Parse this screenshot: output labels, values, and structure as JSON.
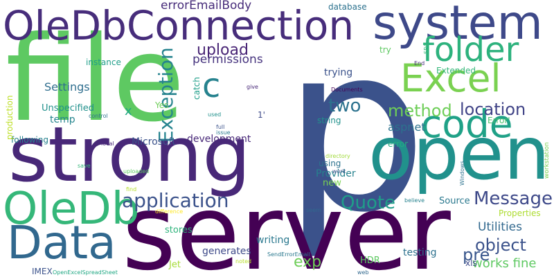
{
  "words": [
    {
      "text": "p",
      "weight": 100,
      "color": "#3b528b"
    },
    {
      "text": "file",
      "weight": 84,
      "color": "#5ec962"
    },
    {
      "text": "server",
      "weight": 82,
      "color": "#440154"
    },
    {
      "text": "strong",
      "weight": 72,
      "color": "#482878"
    },
    {
      "text": "open",
      "weight": 70,
      "color": "#21918c"
    },
    {
      "text": "system",
      "weight": 55,
      "color": "#3e4989"
    },
    {
      "text": "OleDbConnection",
      "weight": 52,
      "color": "#472d7b"
    },
    {
      "text": "Data",
      "weight": 48,
      "color": "#31688e"
    },
    {
      "text": "OleDb",
      "weight": 45,
      "color": "#35b779"
    },
    {
      "text": "code",
      "weight": 44,
      "color": "#1fa187"
    },
    {
      "text": "Excel",
      "weight": 42,
      "color": "#7ad151"
    },
    {
      "text": "folder",
      "weight": 40,
      "color": "#2db27d"
    },
    {
      "text": "c",
      "weight": 38,
      "color": "#26828e"
    },
    {
      "text": "application",
      "weight": 24,
      "color": "#3b528b"
    },
    {
      "text": "Message",
      "weight": 22,
      "color": "#3e4989"
    },
    {
      "text": "two",
      "weight": 22,
      "color": "#2c728e"
    },
    {
      "text": "Quote",
      "weight": 22,
      "color": "#1f9e89"
    },
    {
      "text": "Exception",
      "weight": 22,
      "color": "#25838e"
    },
    {
      "text": "method",
      "weight": 20,
      "color": "#6ece58"
    },
    {
      "text": "location",
      "weight": 20,
      "color": "#414487"
    },
    {
      "text": "object",
      "weight": 20,
      "color": "#3b528b"
    },
    {
      "text": "pre",
      "weight": 20,
      "color": "#39568c"
    },
    {
      "text": "upload",
      "weight": 18,
      "color": "#482475"
    },
    {
      "text": "exp",
      "weight": 18,
      "color": "#6ece58"
    },
    {
      "text": "permissions",
      "weight": 15,
      "color": "#46337e"
    },
    {
      "text": "errorEmailBody",
      "weight": 15,
      "color": "#472c7a"
    },
    {
      "text": "Utilities",
      "weight": 15,
      "color": "#31688e"
    },
    {
      "text": "works fine",
      "weight": 15,
      "color": "#5ec962"
    },
    {
      "text": "x",
      "weight": 15,
      "color": "#22a884"
    },
    {
      "text": "aspnet",
      "weight": 14,
      "color": "#2c728e"
    },
    {
      "text": "Settings",
      "weight": 13,
      "color": "#2e6e8e"
    },
    {
      "text": "Microsoft",
      "weight": 12,
      "color": "#3b528b"
    },
    {
      "text": "development",
      "weight": 12,
      "color": "#482878"
    },
    {
      "text": "generates",
      "weight": 12,
      "color": "#3e4a89"
    },
    {
      "text": "writing",
      "weight": 12,
      "color": "#2a788e"
    },
    {
      "text": "Provider",
      "weight": 12,
      "color": "#26828e"
    },
    {
      "text": "testing",
      "weight": 12,
      "color": "#2d718e"
    },
    {
      "text": "trying",
      "weight": 12,
      "color": "#3b528b"
    },
    {
      "text": "temp",
      "weight": 12,
      "color": "#25858e"
    },
    {
      "text": "Unspecified",
      "weight": 11,
      "color": "#21918c"
    },
    {
      "text": "stores",
      "weight": 11,
      "color": "#2fb47c"
    },
    {
      "text": "HDR",
      "weight": 11,
      "color": "#5ec962"
    },
    {
      "text": "Jet",
      "weight": 11,
      "color": "#a5db36"
    },
    {
      "text": "Source",
      "weight": 11,
      "color": "#2a788e"
    },
    {
      "text": "Properties",
      "weight": 10,
      "color": "#addc30"
    },
    {
      "text": "xls",
      "weight": 10,
      "color": "#3e4a89"
    },
    {
      "text": "new",
      "weight": 11,
      "color": "#7ad151"
    },
    {
      "text": "using",
      "weight": 10,
      "color": "#2c728e"
    },
    {
      "text": "error",
      "weight": 10,
      "color": "#25ab82"
    },
    {
      "text": "string",
      "weight": 10,
      "color": "#21918c"
    },
    {
      "text": "following",
      "weight": 10,
      "color": "#26828e"
    },
    {
      "text": "instance",
      "weight": 10,
      "color": "#1f9e89"
    },
    {
      "text": "Yes",
      "weight": 10,
      "color": "#6ece58"
    },
    {
      "text": "database",
      "weight": 10,
      "color": "#2c728e"
    },
    {
      "text": "try",
      "weight": 10,
      "color": "#5ec962"
    },
    {
      "text": "catch",
      "weight": 9,
      "color": "#1f9e89"
    },
    {
      "text": "production",
      "weight": 9,
      "color": "#bddf26"
    },
    {
      "text": "Extended",
      "weight": 9,
      "color": "#35b779"
    },
    {
      "text": "Error'",
      "weight": 9,
      "color": "#4ac16d"
    },
    {
      "text": "1'",
      "weight": 9,
      "color": "#3e4a89"
    },
    {
      "text": "IMEX",
      "weight": 9,
      "color": "#3b528b"
    },
    {
      "text": "give",
      "weight": 6,
      "color": "#482878"
    },
    {
      "text": "Documents",
      "weight": 6,
      "color": "#440154"
    },
    {
      "text": "used",
      "weight": 6,
      "color": "#21918c"
    },
    {
      "text": "full",
      "weight": 6,
      "color": "#3b528b"
    },
    {
      "text": "issue",
      "weight": 6,
      "color": "#2a788e"
    },
    {
      "text": "local",
      "weight": 6,
      "color": "#482878"
    },
    {
      "text": "control",
      "weight": 6,
      "color": "#2c728e"
    },
    {
      "text": "directory",
      "weight": 6,
      "color": "#a0da39"
    },
    {
      "text": "save",
      "weight": 6,
      "color": "#35b779"
    },
    {
      "text": "uploaded",
      "weight": 6,
      "color": "#5ec962"
    },
    {
      "text": "find",
      "weight": 6,
      "color": "#b5de2b"
    },
    {
      "text": "difference",
      "weight": 6,
      "color": "#fde725"
    },
    {
      "text": "kind",
      "weight": 6,
      "color": "#472d7b"
    },
    {
      "text": "work",
      "weight": 6,
      "color": "#3b528b"
    },
    {
      "text": "seem",
      "weight": 6,
      "color": "#31688e"
    },
    {
      "text": "believe",
      "weight": 6,
      "color": "#26828e"
    },
    {
      "text": "Windows",
      "weight": 6,
      "color": "#2c728e"
    },
    {
      "text": "workstation",
      "weight": 7,
      "color": "#7ad151"
    },
    {
      "text": "End",
      "weight": 6,
      "color": "#472d7b"
    },
    {
      "text": "SP4",
      "weight": 6,
      "color": "#35b779"
    },
    {
      "text": "web",
      "weight": 6,
      "color": "#31688e"
    },
    {
      "text": "noted",
      "weight": 6,
      "color": "#b8de29"
    },
    {
      "text": "OpenExcelSpreadSheet",
      "weight": 6,
      "color": "#22a884"
    },
    {
      "text": "SendErrorEmail",
      "weight": 6,
      "color": "#2a788e"
    }
  ]
}
